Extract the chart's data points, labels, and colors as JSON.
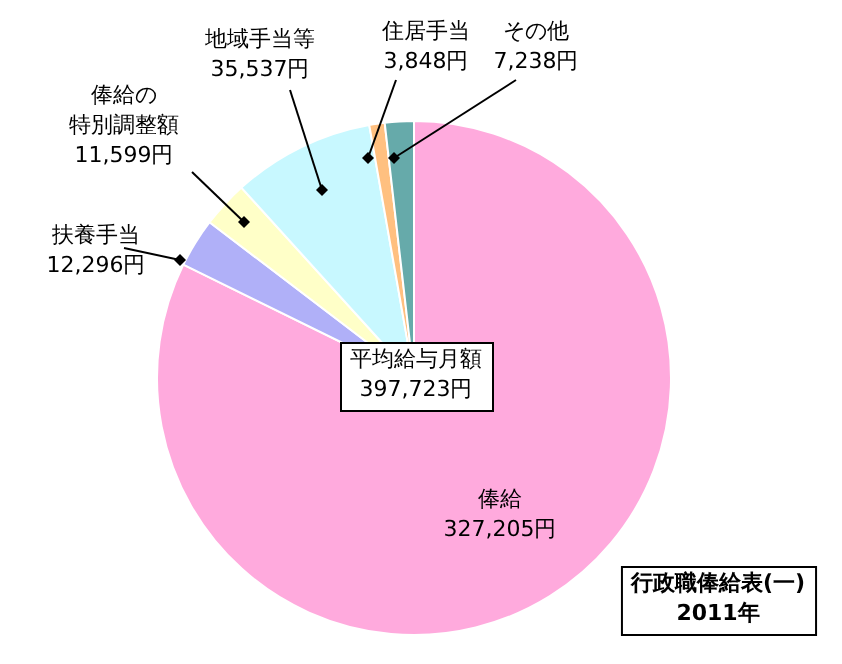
{
  "chart_data": {
    "type": "pie",
    "categories": [
      "俸給",
      "扶養手当",
      "俸給の特別調整額",
      "地域手当等",
      "住居手当",
      "その他"
    ],
    "values": [
      327205,
      12296,
      11599,
      35537,
      3848,
      7238
    ],
    "value_labels": [
      "327,205円",
      "12,296円",
      "11,599円",
      "35,537円",
      "3,848円",
      "7,238円"
    ],
    "colors": [
      "#ffaadd",
      "#b0b0f8",
      "#ffffc8",
      "#c8f8ff",
      "#ffc080",
      "#66aaaa"
    ],
    "annotations": [
      "平均給与月額\n397,723円",
      "行政職俸給表(一)\n2011年"
    ],
    "legend": false
  }
}
